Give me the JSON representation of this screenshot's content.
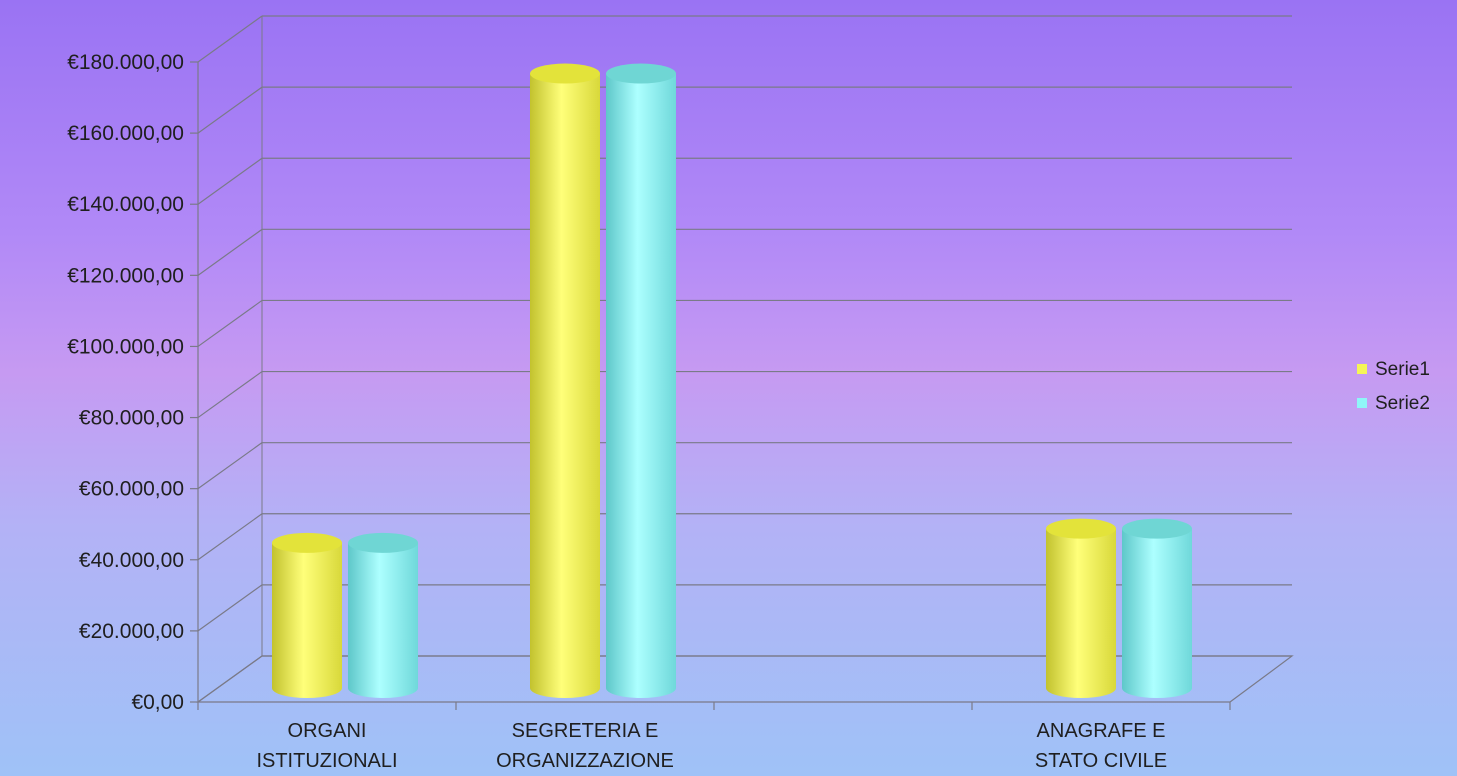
{
  "chart_data": {
    "type": "bar",
    "categories": [
      [
        "ORGANI",
        "ISTITUZIONALI"
      ],
      [
        "SEGRETERIA E",
        "ORGANIZZAZIONE"
      ],
      [
        "",
        ""
      ],
      [
        "ANAGRAFE E",
        "STATO CIVILE"
      ]
    ],
    "series": [
      {
        "name": "Serie1",
        "color": "#f5f556",
        "values": [
          38000,
          170000,
          null,
          42000
        ]
      },
      {
        "name": "Serie2",
        "color": "#8ff6f8",
        "values": [
          38000,
          170000,
          null,
          42000
        ]
      }
    ],
    "y_ticks": [
      "€0,00",
      "€20.000,00",
      "€40.000,00",
      "€60.000,00",
      "€80.000,00",
      "€100.000,00",
      "€120.000,00",
      "€140.000,00",
      "€160.000,00",
      "€180.000,00"
    ],
    "ylim": [
      0,
      180000
    ],
    "grid": true,
    "legend_position": "right",
    "style": "3d-cylinder"
  }
}
